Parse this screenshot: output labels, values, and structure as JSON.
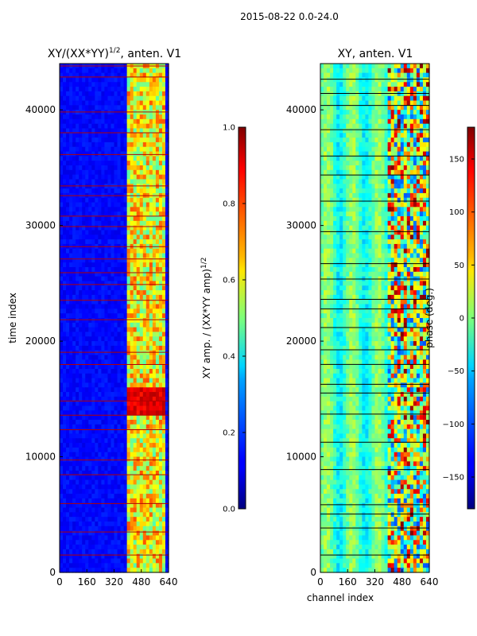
{
  "figure_title": "2015-08-22 0.0-24.0",
  "chart_data": [
    {
      "type": "heatmap",
      "title": "XY/(XX*YY)",
      "title_exponent": "1/2",
      "title_suffix": ", anten. V1",
      "xlabel": "",
      "ylabel": "time index",
      "xlim": [
        0,
        640
      ],
      "ylim": [
        0,
        44000
      ],
      "xticks": [
        "0",
        "160",
        "320",
        "480",
        "640"
      ],
      "yticks": [
        "0",
        "10000",
        "20000",
        "30000",
        "40000"
      ],
      "colormap": "jet",
      "colorbar": {
        "label": "XY amp. / (XX*YY amp)",
        "label_exponent": "1/2",
        "range": [
          0.0,
          1.0
        ],
        "ticks": [
          "0.0",
          "0.2",
          "0.4",
          "0.6",
          "0.8",
          "1.0"
        ]
      },
      "description": "Low normalized amplitude (~0.1) for channels 0-400; high amplitude (0.5-0.9) blocks between channels ~400-620; red horizontal flag lines at many time indices."
    },
    {
      "type": "heatmap",
      "title": "XY, anten. V1",
      "xlabel": "channel index",
      "ylabel": "",
      "xlim": [
        0,
        640
      ],
      "ylim": [
        0,
        44000
      ],
      "xticks": [
        "0",
        "160",
        "320",
        "480",
        "640"
      ],
      "yticks": [
        "0",
        "10000",
        "20000",
        "30000",
        "40000"
      ],
      "colormap": "jet",
      "colorbar": {
        "label": "phase (deg.)",
        "range": [
          -180,
          180
        ],
        "ticks": [
          "−150",
          "−100",
          "−50",
          "0",
          "50",
          "100",
          "150"
        ]
      },
      "description": "Phase mostly in -50..50 range across channels 0-400 with bands; strong mixed phase (red/blue) in channels ~400-640; many dark horizontal flag lines."
    }
  ],
  "colors": {
    "jet_dark_blue": "#00007f",
    "jet_blue": "#0000ff",
    "jet_cyan": "#00ffff",
    "jet_yellow": "#ffff00",
    "jet_red": "#ff0000",
    "jet_dark_red": "#7f0000"
  }
}
